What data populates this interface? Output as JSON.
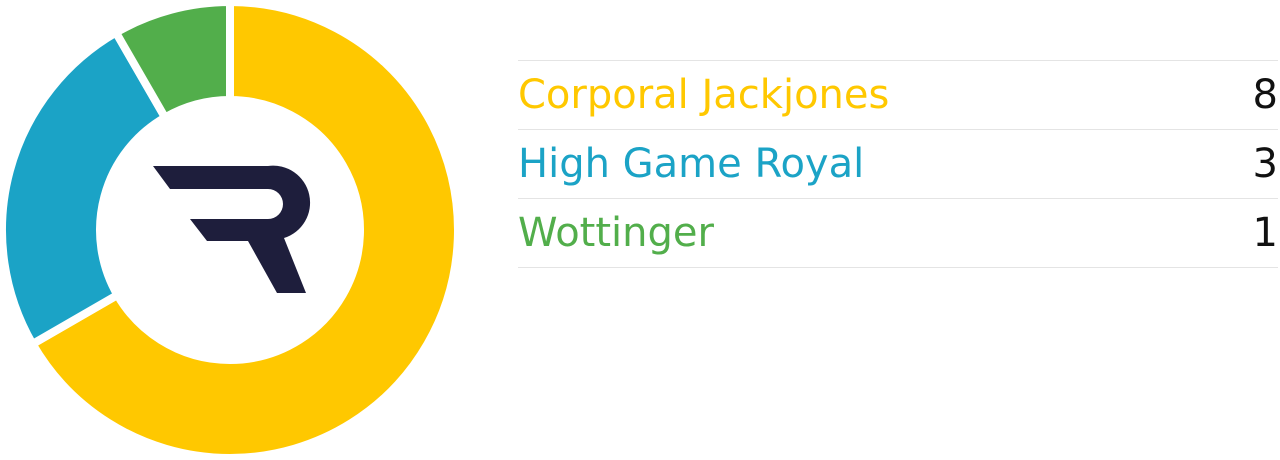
{
  "chart_data": {
    "type": "pie",
    "variant": "donut",
    "categories": [
      "Corporal Jackjones",
      "High Game Royal",
      "Wottinger"
    ],
    "values": [
      8,
      3,
      1
    ],
    "colors": [
      "#FFC800",
      "#1BA3C6",
      "#52AE4B"
    ],
    "legend_placement": "right",
    "center_icon": "r-logo-icon",
    "logo_color": "#1E1E3C"
  }
}
